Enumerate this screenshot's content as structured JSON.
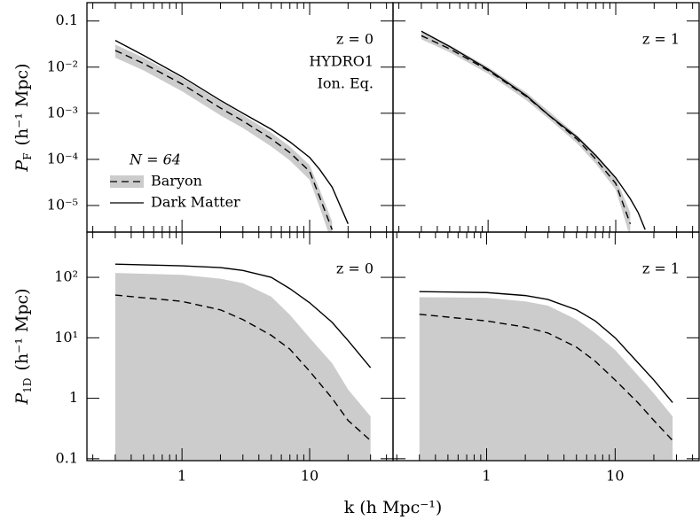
{
  "chart_data": [
    {
      "type": "line",
      "ylabel": {
        "symbol": "P",
        "subscript": "F",
        "unit": "(h⁻¹ Mpc)"
      },
      "annotations": [
        "z = 0",
        "HYDRO1",
        "Ion. Eq."
      ],
      "legend": true,
      "legend_title": "N = 64",
      "xlim": [
        0.18,
        45
      ],
      "ylim": [
        2.65e-06,
        0.25
      ],
      "yticks": [
        0.1,
        {
          "value": 0.01,
          "label": "10⁻²"
        },
        {
          "value": 0.001,
          "label": "10⁻³"
        },
        {
          "value": 0.0001,
          "label": "10⁻⁴"
        },
        {
          "value": 1e-05,
          "label": "10⁻⁵"
        }
      ],
      "x": [
        0.3,
        0.5,
        1,
        2,
        3,
        5,
        7,
        10,
        12,
        15,
        20
      ],
      "series": [
        {
          "name": "Baryon",
          "color": "#000000",
          "dashed": true,
          "band_color": "#cccccc",
          "values": [
            0.023,
            0.012,
            0.0043,
            0.0013,
            0.00068,
            0.00028,
            0.00014,
            5.5e-05,
            1.5e-05,
            3e-06,
            null
          ],
          "band_low": [
            0.016,
            0.0085,
            0.003,
            0.0009,
            0.00048,
            0.00019,
            9.5e-05,
            3.6e-05,
            9e-06,
            1.5e-06,
            null
          ],
          "band_high": [
            0.031,
            0.016,
            0.0058,
            0.0018,
            0.00092,
            0.00038,
            0.00019,
            7.5e-05,
            2.2e-05,
            4.5e-06,
            null
          ]
        },
        {
          "name": "Dark Matter",
          "color": "#000000",
          "dashed": false,
          "values": [
            0.038,
            0.018,
            0.0062,
            0.0019,
            0.001,
            0.00045,
            0.00024,
            0.00011,
            6e-05,
            2.5e-05,
            4e-06
          ]
        }
      ]
    },
    {
      "type": "line",
      "annotations": [
        "z = 1"
      ],
      "xlim": [
        0.18,
        45
      ],
      "ylim": [
        2.65e-06,
        0.25
      ],
      "x": [
        0.3,
        0.5,
        1,
        2,
        3,
        5,
        7,
        10,
        13,
        15,
        17
      ],
      "series": [
        {
          "color": "#000000",
          "dashed": true,
          "band_color": "#cccccc",
          "values": [
            0.048,
            0.025,
            0.0085,
            0.0023,
            0.0009,
            0.00027,
            0.0001,
            3e-05,
            4e-06,
            null,
            null
          ],
          "band_low": [
            0.04,
            0.021,
            0.0072,
            0.0019,
            0.00075,
            0.00022,
            8e-05,
            2.2e-05,
            2e-06,
            null,
            null
          ],
          "band_high": [
            0.057,
            0.03,
            0.01,
            0.0028,
            0.0011,
            0.00033,
            0.00013,
            4e-05,
            7e-06,
            null,
            null
          ]
        },
        {
          "color": "#000000",
          "dashed": false,
          "values": [
            0.06,
            0.028,
            0.009,
            0.0024,
            0.0009,
            0.0003,
            0.00012,
            4e-05,
            1.4e-05,
            7e-06,
            3e-06
          ]
        }
      ]
    },
    {
      "type": "line",
      "ylabel": {
        "symbol": "P",
        "subscript": "1D",
        "unit": "(h⁻¹ Mpc)"
      },
      "xlabel": "k  (h Mpc⁻¹)",
      "annotations": [
        "z = 0"
      ],
      "xlim": [
        0.18,
        45
      ],
      "ylim": [
        0.093,
        560
      ],
      "xticks": [
        1,
        10
      ],
      "xminorticks": [
        0.2,
        0.3,
        0.4,
        0.5,
        0.6,
        0.7,
        0.8,
        0.9,
        2,
        3,
        4,
        5,
        6,
        7,
        8,
        9,
        20,
        30,
        40
      ],
      "yticks": [
        0.1,
        1,
        {
          "value": 10,
          "label": "10¹"
        },
        {
          "value": 100,
          "label": "10²"
        }
      ],
      "x": [
        0.3,
        1,
        2,
        3,
        5,
        7,
        10,
        15,
        20,
        30
      ],
      "series": [
        {
          "color": "#000000",
          "dashed": true,
          "band_color": "#cccccc",
          "values": [
            51,
            40,
            29,
            20,
            11,
            6.5,
            2.8,
            1,
            0.43,
            0.2
          ],
          "band_low": [
            0.05,
            0.05,
            0.05,
            0.05,
            0.05,
            0.05,
            0.05,
            0.05,
            0.05,
            0.05
          ],
          "band_high": [
            118,
            110,
            95,
            80,
            48,
            24,
            10,
            3.8,
            1.4,
            0.5
          ]
        },
        {
          "color": "#000000",
          "dashed": false,
          "values": [
            165,
            155,
            145,
            130,
            100,
            65,
            38,
            18,
            9,
            3.2
          ]
        }
      ]
    },
    {
      "type": "line",
      "annotations": [
        "z = 1"
      ],
      "xlim": [
        0.187,
        45
      ],
      "ylim": [
        0.093,
        560
      ],
      "xticks": [
        1,
        10
      ],
      "xminorticks": [
        0.2,
        0.3,
        0.4,
        0.5,
        0.6,
        0.7,
        0.8,
        0.9,
        2,
        3,
        4,
        5,
        6,
        7,
        8,
        9,
        20,
        30,
        40
      ],
      "x": [
        0.3,
        1,
        2,
        3,
        5,
        7,
        10,
        15,
        20,
        28
      ],
      "series": [
        {
          "color": "#000000",
          "dashed": true,
          "band_color": "#cccccc",
          "values": [
            24.5,
            19,
            15,
            12,
            7,
            4.1,
            2,
            0.85,
            0.43,
            0.2
          ],
          "band_low": [
            0.05,
            0.05,
            0.05,
            0.05,
            0.05,
            0.05,
            0.05,
            0.05,
            0.05,
            0.05
          ],
          "band_high": [
            47,
            46,
            40,
            34,
            20,
            12,
            6.3,
            2.4,
            1.2,
            0.5
          ]
        },
        {
          "color": "#000000",
          "dashed": false,
          "values": [
            58,
            56,
            50,
            43,
            29,
            19,
            10,
            3.9,
            2,
            0.85
          ]
        }
      ]
    }
  ]
}
